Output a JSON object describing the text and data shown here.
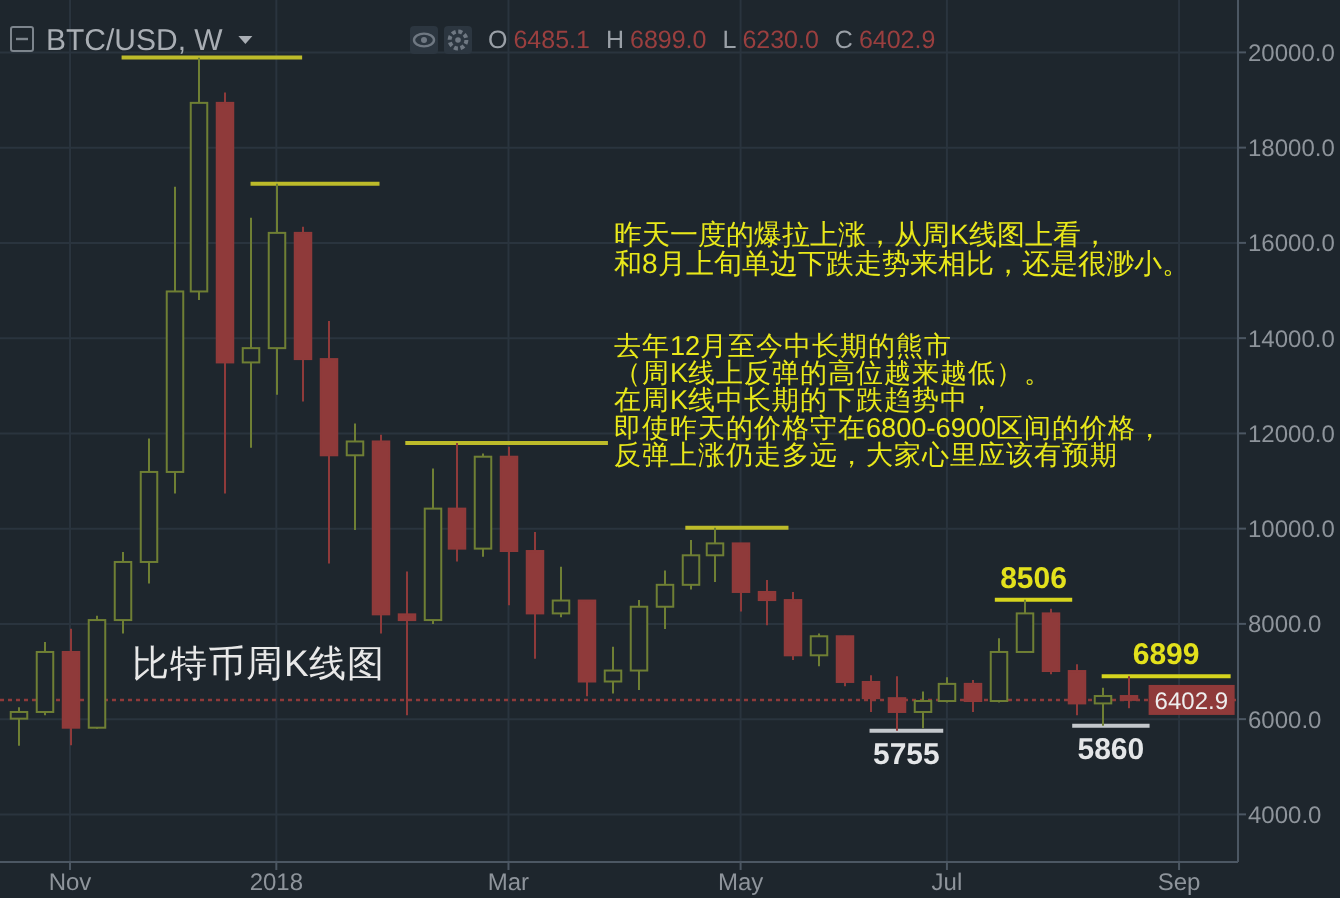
{
  "chart_data": {
    "type": "candlestick",
    "title": "BTC/USD, W",
    "subtitle": "O 6485.1 H 6899.0 L 6230.0 C 6402.9",
    "x": [
      "2017-10-23",
      "2017-10-30",
      "2017-11-06",
      "2017-11-13",
      "2017-11-20",
      "2017-11-27",
      "2017-12-04",
      "2017-12-11",
      "2017-12-18",
      "2017-12-25",
      "2018-01-01",
      "2018-01-08",
      "2018-01-15",
      "2018-01-22",
      "2018-01-29",
      "2018-02-05",
      "2018-02-12",
      "2018-02-19",
      "2018-02-26",
      "2018-03-05",
      "2018-03-12",
      "2018-03-19",
      "2018-03-26",
      "2018-04-02",
      "2018-04-09",
      "2018-04-16",
      "2018-04-23",
      "2018-04-30",
      "2018-05-07",
      "2018-05-14",
      "2018-05-21",
      "2018-05-28",
      "2018-06-04",
      "2018-06-11",
      "2018-06-18",
      "2018-06-25",
      "2018-07-02",
      "2018-07-09",
      "2018-07-16",
      "2018-07-23",
      "2018-07-30",
      "2018-08-06",
      "2018-08-13",
      "2018-08-20"
    ],
    "ohlc": [
      [
        6010,
        6250,
        5440,
        6150
      ],
      [
        6150,
        7620,
        6080,
        7410
      ],
      [
        7410,
        7900,
        5450,
        5820
      ],
      [
        5820,
        8170,
        5800,
        8080
      ],
      [
        8080,
        9510,
        7800,
        9300
      ],
      [
        9300,
        11890,
        8850,
        11190
      ],
      [
        11190,
        17180,
        10740,
        14980
      ],
      [
        14980,
        19890,
        14800,
        18940
      ],
      [
        18940,
        19160,
        10740,
        13490
      ],
      [
        13490,
        16530,
        11700,
        13790
      ],
      [
        13790,
        17240,
        12810,
        16210
      ],
      [
        16210,
        16340,
        12670,
        13560
      ],
      [
        13560,
        14360,
        9270,
        11540
      ],
      [
        11540,
        12210,
        9970,
        11830
      ],
      [
        11830,
        11970,
        7800,
        8200
      ],
      [
        8200,
        9100,
        6080,
        8080
      ],
      [
        8080,
        11260,
        8000,
        10420
      ],
      [
        10420,
        11800,
        9310,
        9580
      ],
      [
        9580,
        11580,
        9410,
        11510
      ],
      [
        11510,
        11720,
        8390,
        9530
      ],
      [
        9530,
        9930,
        7270,
        8220
      ],
      [
        8220,
        9200,
        8140,
        8490
      ],
      [
        8490,
        8500,
        6480,
        6790
      ],
      [
        6790,
        7520,
        6540,
        7020
      ],
      [
        7020,
        8500,
        6610,
        8360
      ],
      [
        8360,
        9120,
        7890,
        8820
      ],
      [
        8820,
        9760,
        8720,
        9440
      ],
      [
        9440,
        10020,
        8880,
        9690
      ],
      [
        9690,
        9700,
        8260,
        8670
      ],
      [
        8670,
        8920,
        7970,
        8500
      ],
      [
        8500,
        8670,
        7240,
        7340
      ],
      [
        7340,
        7800,
        7110,
        7740
      ],
      [
        7740,
        7750,
        6690,
        6780
      ],
      [
        6780,
        6920,
        6150,
        6440
      ],
      [
        6440,
        6900,
        5755,
        6150
      ],
      [
        6150,
        6580,
        5810,
        6380
      ],
      [
        6380,
        6880,
        6350,
        6740
      ],
      [
        6740,
        6820,
        6150,
        6380
      ],
      [
        6380,
        7700,
        6350,
        7410
      ],
      [
        7410,
        8506,
        7400,
        8220
      ],
      [
        8220,
        8320,
        6940,
        7010
      ],
      [
        7010,
        7150,
        6080,
        6330
      ],
      [
        6330,
        6660,
        5860,
        6485.1
      ],
      [
        6485.1,
        6899.0,
        6230.0,
        6402.9
      ]
    ],
    "colors": [
      "#6f7f34",
      "#6f7f34",
      "#8f3a3a",
      "#6f7f34",
      "#6f7f34",
      "#6f7f34",
      "#6f7f34",
      "#6f7f34",
      "#8f3a3a",
      "#6f7f34",
      "#6f7f34",
      "#8f3a3a",
      "#8f3a3a",
      "#6f7f34",
      "#8f3a3a",
      "#8f3a3a",
      "#6f7f34",
      "#8f3a3a",
      "#6f7f34",
      "#8f3a3a",
      "#8f3a3a",
      "#6f7f34",
      "#8f3a3a",
      "#6f7f34",
      "#6f7f34",
      "#6f7f34",
      "#6f7f34",
      "#6f7f34",
      "#8f3a3a",
      "#8f3a3a",
      "#8f3a3a",
      "#6f7f34",
      "#8f3a3a",
      "#8f3a3a",
      "#8f3a3a",
      "#6f7f34",
      "#6f7f34",
      "#8f3a3a",
      "#6f7f34",
      "#6f7f34",
      "#8f3a3a",
      "#8f3a3a",
      "#6f7f34",
      "#8f3a3a"
    ],
    "series": [
      {
        "type": "line",
        "x": [
          "2017-11-20",
          "2018-01-08"
        ],
        "values": [
          19890,
          19890
        ],
        "color": "#bdbb2a"
      },
      {
        "type": "line",
        "x": [
          "2017-12-25",
          "2018-01-29"
        ],
        "values": [
          17240,
          17240
        ],
        "color": "#bdbb2a"
      },
      {
        "type": "line",
        "x": [
          "2018-02-05",
          "2018-04-01"
        ],
        "values": [
          11800,
          11800
        ],
        "color": "#bdbb2a"
      },
      {
        "type": "line",
        "x": [
          "2018-04-22",
          "2018-05-20"
        ],
        "values": [
          10020,
          10020
        ],
        "color": "#bdbb2a"
      },
      {
        "type": "line",
        "x": [
          "2018-07-15",
          "2018-08-05"
        ],
        "values": [
          8506,
          8506
        ],
        "color": "#d6d41e"
      },
      {
        "type": "line",
        "x": [
          "2018-08-13",
          "2018-09-17"
        ],
        "values": [
          6899,
          6899
        ],
        "color": "#d6d41e"
      },
      {
        "type": "line",
        "x": [
          "2018-06-11",
          "2018-07-01"
        ],
        "values": [
          5755,
          5755
        ],
        "color": "#c4c8cc"
      },
      {
        "type": "line",
        "x": [
          "2018-08-05",
          "2018-08-26"
        ],
        "values": [
          5860,
          5860
        ],
        "color": "#c4c8cc"
      }
    ],
    "xlim": [
      "2017-10-18",
      "2018-09-19"
    ],
    "xticks": [
      {
        "value": "2017-11-06",
        "label": "Nov"
      },
      {
        "value": "2018-01-01",
        "label": "2018"
      },
      {
        "value": "2018-03-05",
        "label": "Mar"
      },
      {
        "value": "2018-05-07",
        "label": "May"
      },
      {
        "value": "2018-07-02",
        "label": "Jul"
      },
      {
        "value": "2018-09-03",
        "label": "Sep"
      }
    ],
    "ylim": [
      3000,
      21100
    ],
    "yticks": [
      {
        "value": 4000,
        "label": "4000.0"
      },
      {
        "value": 6000,
        "label": "6000.0"
      },
      {
        "value": 8000,
        "label": "8000.0"
      },
      {
        "value": 10000,
        "label": "10000.0"
      },
      {
        "value": 12000,
        "label": "12000.0"
      },
      {
        "value": 14000,
        "label": "14000.0"
      },
      {
        "value": 16000,
        "label": "16000.0"
      },
      {
        "value": 18000,
        "label": "18000.0"
      },
      {
        "value": 20000,
        "label": "20000.0"
      }
    ],
    "grid": true,
    "ref_lines": [
      {
        "axis": "y",
        "value": 6402.9,
        "label": "6402.9",
        "color": "#8f3a3a",
        "line_style": "dotted"
      }
    ],
    "annotations": [
      "昨天一度的爆拉上涨，从周K线图上看，和8月上旬单边下跌走势来相比，还是很渺小。",
      "去年12月至今中长期的熊市（周K线上反弹的高位越来越低）。在周K线中长期的下跌趋势中，即使昨天的价格守在6800-6900区间的价格，反弹上涨仍走多远，大家心里应该有预期",
      "比特币周K线图",
      {
        "text": "8506",
        "x": "2018-07-23",
        "y": 8506
      },
      {
        "text": "6899",
        "x": "2018-08-20",
        "y": 6899
      },
      {
        "text": "5755",
        "x": "2018-06-18",
        "y": 5755
      },
      {
        "text": "5860",
        "x": "2018-08-13",
        "y": 5860
      }
    ]
  }
}
